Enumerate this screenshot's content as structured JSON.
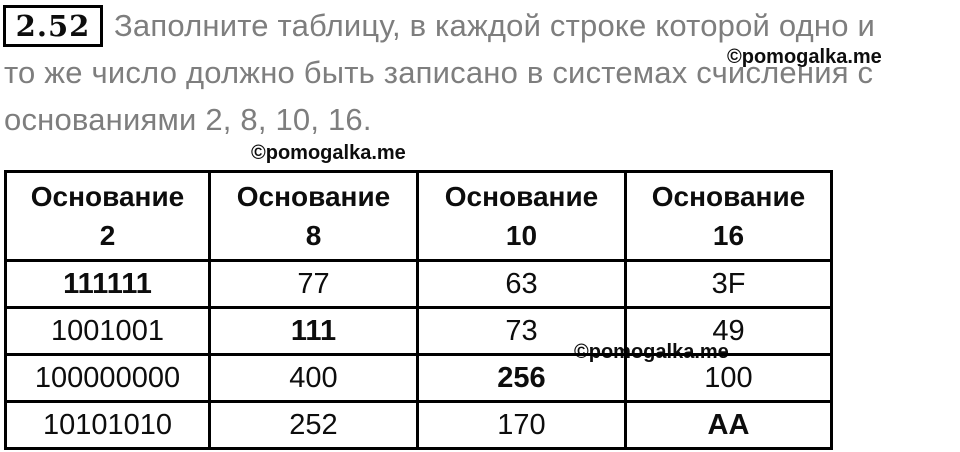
{
  "task": {
    "number": "2.52",
    "text_lines": [
      "Заполните таблицу, в каждой строке которой одно и",
      "то же число должно быть записано в системах счисления с",
      "основаниями 2, 8, 10, 16."
    ]
  },
  "watermark": {
    "text": "©pomogalka.me"
  },
  "table": {
    "header_word": "Основание",
    "bases": [
      "2",
      "8",
      "10",
      "16"
    ],
    "rows": [
      {
        "cells": [
          {
            "value": "111111",
            "bold": true
          },
          {
            "value": "77",
            "bold": false
          },
          {
            "value": "63",
            "bold": false
          },
          {
            "value": "3F",
            "bold": false
          }
        ]
      },
      {
        "cells": [
          {
            "value": "1001001",
            "bold": false
          },
          {
            "value": "111",
            "bold": true
          },
          {
            "value": "73",
            "bold": false
          },
          {
            "value": "49",
            "bold": false
          }
        ]
      },
      {
        "cells": [
          {
            "value": "100000000",
            "bold": false
          },
          {
            "value": "400",
            "bold": false
          },
          {
            "value": "256",
            "bold": true
          },
          {
            "value": "100",
            "bold": false
          }
        ]
      },
      {
        "cells": [
          {
            "value": "10101010",
            "bold": false
          },
          {
            "value": "252",
            "bold": false
          },
          {
            "value": "170",
            "bold": false
          },
          {
            "value": "AA",
            "bold": true
          }
        ]
      }
    ]
  },
  "colors": {
    "body_text": "#7e7e7e",
    "table_text": "#0d0d0d",
    "border": "#000000",
    "background": "#ffffff"
  }
}
